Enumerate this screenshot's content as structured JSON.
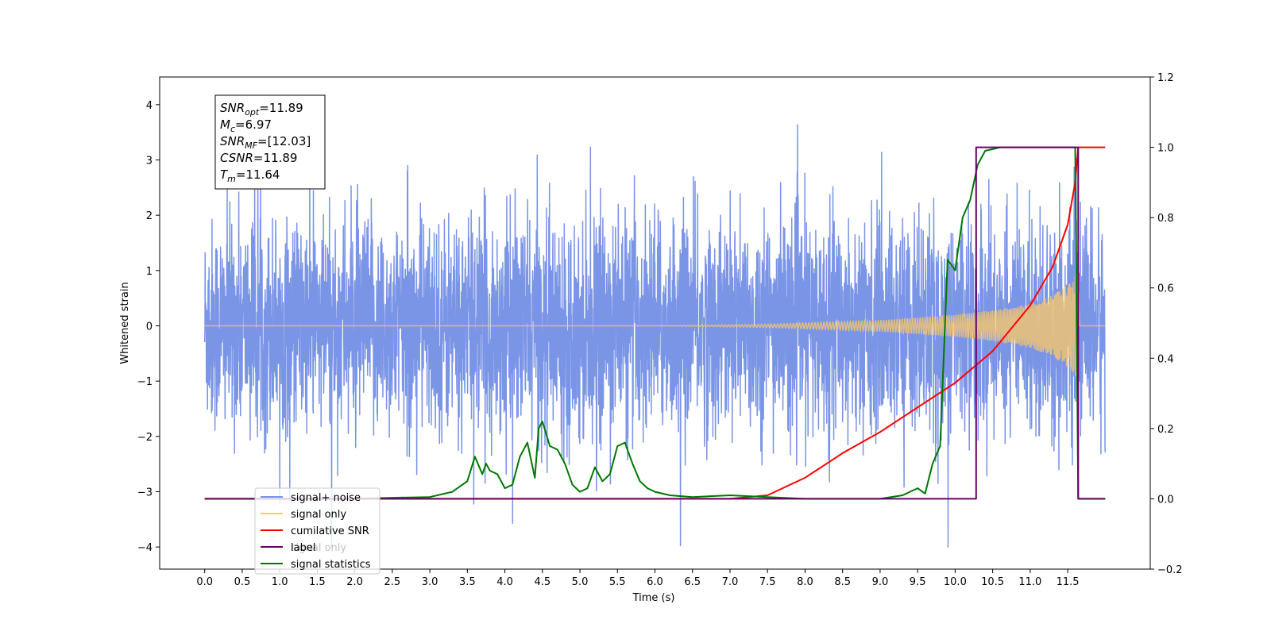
{
  "chart_data": {
    "type": "line",
    "xlabel": "Time (s)",
    "ylabel": "Whitened strain",
    "xlim": [
      -0.6,
      12.6
    ],
    "ylim_left": [
      -4.4,
      4.5
    ],
    "ylim_right": [
      -0.2,
      1.2
    ],
    "x_ticks": [
      "0.0",
      "0.5",
      "1.0",
      "1.5",
      "2.0",
      "2.5",
      "3.0",
      "3.5",
      "4.0",
      "4.5",
      "5.0",
      "5.5",
      "6.0",
      "6.5",
      "7.0",
      "7.5",
      "8.0",
      "8.5",
      "9.0",
      "9.5",
      "10.0",
      "10.5",
      "11.0",
      "11.5"
    ],
    "y_ticks_left": [
      "−4",
      "−3",
      "−2",
      "−1",
      "0",
      "1",
      "2",
      "3",
      "4"
    ],
    "y_ticks_right": [
      "−0.2",
      "0.0",
      "0.2",
      "0.4",
      "0.6",
      "0.8",
      "1.0",
      "1.2"
    ],
    "annotation": [
      {
        "base": "SNR",
        "sub": "opt",
        "value": "=11.89"
      },
      {
        "base": "M",
        "sub": "c",
        "value": "=6.97"
      },
      {
        "base": "SNR",
        "sub": "MF",
        "value": "=[12.03]"
      },
      {
        "base": "CSNR",
        "sub": "",
        "value": "=11.89"
      },
      {
        "base": "T",
        "sub": "m",
        "value": "=11.64"
      }
    ],
    "legend": [
      {
        "name": "signal+ noise",
        "color": "#7a94e6"
      },
      {
        "name": "signal only",
        "color": "#ffc966"
      },
      {
        "name": "cumilative SNR",
        "color": "#ff0000"
      },
      {
        "name": "label",
        "color": "#6a006a"
      },
      {
        "name": "signal statistics",
        "color": "#007800"
      }
    ],
    "legend_overlaid_text": [
      "signal only"
    ],
    "series": [
      {
        "name": "signal+ noise",
        "axis": "left",
        "description_values": {
          "t_start": 0.0,
          "t_end": 12.0,
          "sigma": 0.95,
          "min": -4.0,
          "max": 4.1
        }
      },
      {
        "name": "signal only",
        "axis": "left",
        "chirp_envelope": {
          "t": [
            0,
            6.0,
            7.5,
            9.0,
            10.0,
            10.5,
            11.0,
            11.3,
            11.5,
            11.6,
            11.64,
            11.66,
            12.0
          ],
          "amp": [
            0.0,
            0.0,
            0.03,
            0.1,
            0.2,
            0.28,
            0.4,
            0.55,
            0.75,
            0.9,
            1.0,
            0.0,
            0.0
          ]
        }
      },
      {
        "name": "cumilative SNR",
        "axis": "right",
        "x": [
          0,
          7.0,
          7.5,
          8.0,
          8.5,
          9.0,
          9.5,
          10.0,
          10.5,
          11.0,
          11.3,
          11.5,
          11.6,
          11.64,
          12.0
        ],
        "y": [
          0.0,
          0.0,
          0.01,
          0.06,
          0.13,
          0.19,
          0.26,
          0.33,
          0.42,
          0.55,
          0.66,
          0.78,
          0.9,
          1.0,
          1.0
        ]
      },
      {
        "name": "label",
        "axis": "right",
        "x": [
          0,
          10.28,
          10.28,
          11.64,
          11.64,
          12.0
        ],
        "y": [
          0.0,
          0.0,
          1.0,
          1.0,
          0.0,
          0.0
        ]
      },
      {
        "name": "signal statistics",
        "axis": "right",
        "x": [
          0,
          2.0,
          2.5,
          3.0,
          3.3,
          3.5,
          3.6,
          3.7,
          3.75,
          3.8,
          3.9,
          4.0,
          4.1,
          4.2,
          4.3,
          4.4,
          4.45,
          4.5,
          4.6,
          4.7,
          4.8,
          4.9,
          5.0,
          5.1,
          5.2,
          5.3,
          5.4,
          5.5,
          5.6,
          5.7,
          5.8,
          5.9,
          6.0,
          6.2,
          6.5,
          7.0,
          7.5,
          8.0,
          9.0,
          9.3,
          9.5,
          9.6,
          9.7,
          9.8,
          9.9,
          10.0,
          10.1,
          10.2,
          10.3,
          10.4,
          10.6,
          11.0,
          11.5,
          11.6,
          11.64,
          11.7,
          12.0
        ],
        "y": [
          0.0,
          0.0,
          0.003,
          0.005,
          0.02,
          0.05,
          0.12,
          0.07,
          0.1,
          0.08,
          0.07,
          0.03,
          0.04,
          0.12,
          0.16,
          0.06,
          0.2,
          0.22,
          0.15,
          0.14,
          0.1,
          0.04,
          0.02,
          0.03,
          0.09,
          0.05,
          0.07,
          0.15,
          0.16,
          0.1,
          0.05,
          0.03,
          0.02,
          0.01,
          0.005,
          0.01,
          0.005,
          0.0,
          0.0,
          0.01,
          0.03,
          0.015,
          0.1,
          0.15,
          0.68,
          0.65,
          0.8,
          0.85,
          0.95,
          0.99,
          1.0,
          1.0,
          1.0,
          1.0,
          0.0,
          0.0,
          0.0
        ]
      }
    ]
  }
}
